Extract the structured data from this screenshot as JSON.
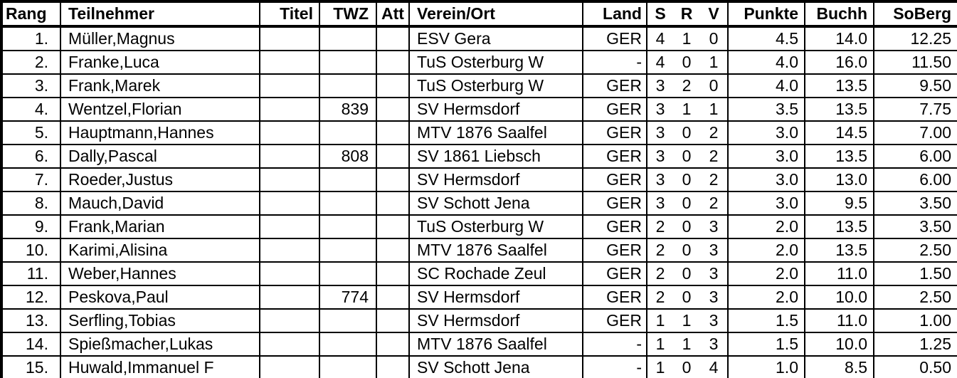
{
  "table": {
    "columns": [
      {
        "key": "rang",
        "label": "Rang"
      },
      {
        "key": "teilnehmer",
        "label": "Teilnehmer"
      },
      {
        "key": "titel",
        "label": "Titel"
      },
      {
        "key": "twz",
        "label": "TWZ"
      },
      {
        "key": "att",
        "label": "Att"
      },
      {
        "key": "verein",
        "label": "Verein/Ort"
      },
      {
        "key": "land",
        "label": "Land"
      },
      {
        "key": "s",
        "label": "S"
      },
      {
        "key": "r",
        "label": "R"
      },
      {
        "key": "v",
        "label": "V"
      },
      {
        "key": "punkte",
        "label": "Punkte"
      },
      {
        "key": "buchh",
        "label": "Buchh"
      },
      {
        "key": "soberg",
        "label": "SoBerg"
      }
    ],
    "rows": [
      {
        "rang": "1.",
        "teilnehmer": "Müller,Magnus",
        "titel": "",
        "twz": "",
        "att": "",
        "verein": "ESV Gera",
        "land": "GER",
        "s": "4",
        "r": "1",
        "v": "0",
        "punkte": "4.5",
        "buchh": "14.0",
        "soberg": "12.25"
      },
      {
        "rang": "2.",
        "teilnehmer": "Franke,Luca",
        "titel": "",
        "twz": "",
        "att": "",
        "verein": "TuS Osterburg W",
        "land": "-",
        "s": "4",
        "r": "0",
        "v": "1",
        "punkte": "4.0",
        "buchh": "16.0",
        "soberg": "11.50"
      },
      {
        "rang": "3.",
        "teilnehmer": "Frank,Marek",
        "titel": "",
        "twz": "",
        "att": "",
        "verein": "TuS Osterburg W",
        "land": "GER",
        "s": "3",
        "r": "2",
        "v": "0",
        "punkte": "4.0",
        "buchh": "13.5",
        "soberg": "9.50"
      },
      {
        "rang": "4.",
        "teilnehmer": "Wentzel,Florian",
        "titel": "",
        "twz": "839",
        "att": "",
        "verein": "SV Hermsdorf",
        "land": "GER",
        "s": "3",
        "r": "1",
        "v": "1",
        "punkte": "3.5",
        "buchh": "13.5",
        "soberg": "7.75"
      },
      {
        "rang": "5.",
        "teilnehmer": "Hauptmann,Hannes",
        "titel": "",
        "twz": "",
        "att": "",
        "verein": "MTV 1876 Saalfel",
        "land": "GER",
        "s": "3",
        "r": "0",
        "v": "2",
        "punkte": "3.0",
        "buchh": "14.5",
        "soberg": "7.00"
      },
      {
        "rang": "6.",
        "teilnehmer": "Dally,Pascal",
        "titel": "",
        "twz": "808",
        "att": "",
        "verein": "SV 1861 Liebsch",
        "land": "GER",
        "s": "3",
        "r": "0",
        "v": "2",
        "punkte": "3.0",
        "buchh": "13.5",
        "soberg": "6.00"
      },
      {
        "rang": "7.",
        "teilnehmer": "Roeder,Justus",
        "titel": "",
        "twz": "",
        "att": "",
        "verein": "SV Hermsdorf",
        "land": "GER",
        "s": "3",
        "r": "0",
        "v": "2",
        "punkte": "3.0",
        "buchh": "13.0",
        "soberg": "6.00"
      },
      {
        "rang": "8.",
        "teilnehmer": "Mauch,David",
        "titel": "",
        "twz": "",
        "att": "",
        "verein": "SV Schott Jena",
        "land": "GER",
        "s": "3",
        "r": "0",
        "v": "2",
        "punkte": "3.0",
        "buchh": "9.5",
        "soberg": "3.50"
      },
      {
        "rang": "9.",
        "teilnehmer": "Frank,Marian",
        "titel": "",
        "twz": "",
        "att": "",
        "verein": "TuS Osterburg W",
        "land": "GER",
        "s": "2",
        "r": "0",
        "v": "3",
        "punkte": "2.0",
        "buchh": "13.5",
        "soberg": "3.50"
      },
      {
        "rang": "10.",
        "teilnehmer": "Karimi,Alisina",
        "titel": "",
        "twz": "",
        "att": "",
        "verein": "MTV 1876 Saalfel",
        "land": "GER",
        "s": "2",
        "r": "0",
        "v": "3",
        "punkte": "2.0",
        "buchh": "13.5",
        "soberg": "2.50"
      },
      {
        "rang": "11.",
        "teilnehmer": "Weber,Hannes",
        "titel": "",
        "twz": "",
        "att": "",
        "verein": "SC Rochade Zeul",
        "land": "GER",
        "s": "2",
        "r": "0",
        "v": "3",
        "punkte": "2.0",
        "buchh": "11.0",
        "soberg": "1.50"
      },
      {
        "rang": "12.",
        "teilnehmer": "Peskova,Paul",
        "titel": "",
        "twz": "774",
        "att": "",
        "verein": "SV Hermsdorf",
        "land": "GER",
        "s": "2",
        "r": "0",
        "v": "3",
        "punkte": "2.0",
        "buchh": "10.0",
        "soberg": "2.50"
      },
      {
        "rang": "13.",
        "teilnehmer": "Serfling,Tobias",
        "titel": "",
        "twz": "",
        "att": "",
        "verein": "SV Hermsdorf",
        "land": "GER",
        "s": "1",
        "r": "1",
        "v": "3",
        "punkte": "1.5",
        "buchh": "11.0",
        "soberg": "1.00"
      },
      {
        "rang": "14.",
        "teilnehmer": "Spießmacher,Lukas",
        "titel": "",
        "twz": "",
        "att": "",
        "verein": "MTV 1876 Saalfel",
        "land": "-",
        "s": "1",
        "r": "1",
        "v": "3",
        "punkte": "1.5",
        "buchh": "10.0",
        "soberg": "1.25"
      },
      {
        "rang": "15.",
        "teilnehmer": "Huwald,Immanuel F",
        "titel": "",
        "twz": "",
        "att": "",
        "verein": "SV Schott Jena",
        "land": "-",
        "s": "1",
        "r": "0",
        "v": "4",
        "punkte": "1.0",
        "buchh": "8.5",
        "soberg": "0.50"
      }
    ]
  },
  "colors": {
    "text": "#000000",
    "background": "#ffffff",
    "border": "#000000"
  }
}
